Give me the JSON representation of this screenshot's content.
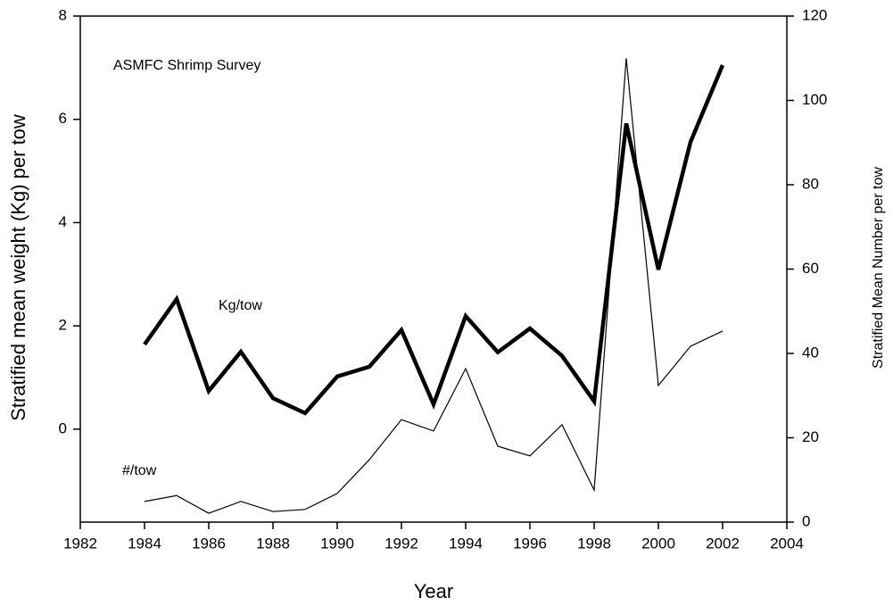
{
  "chart_data": {
    "type": "line",
    "annotations": [
      "ASMFC Shrimp Survey"
    ],
    "xlabel": "Year",
    "ylabel": "Stratified mean weight (Kg) per tow",
    "y2label": "Stratified Mean Number per tow",
    "x": [
      1984,
      1985,
      1986,
      1987,
      1988,
      1989,
      1990,
      1991,
      1992,
      1993,
      1994,
      1995,
      1996,
      1997,
      1998,
      1999,
      2000,
      2001,
      2002
    ],
    "series": [
      {
        "name": "Kg/tow",
        "color": "#000000",
        "values": [
          1.64,
          2.52,
          0.74,
          1.5,
          0.6,
          0.31,
          1.02,
          1.21,
          1.92,
          0.48,
          2.19,
          1.49,
          1.95,
          1.42,
          0.54,
          5.92,
          3.09,
          5.56,
          7.05
        ]
      },
      {
        "name": "#/tow",
        "color": "#000000",
        "axis": "y2",
        "values": [
          4.9,
          6.3,
          2.1,
          4.9,
          2.5,
          3.0,
          6.8,
          14.8,
          24.3,
          21.6,
          36.4,
          18.0,
          15.7,
          23.1,
          7.6,
          110.0,
          32.4,
          41.7,
          45.3
        ]
      }
    ],
    "xlim": [
      1982,
      2004
    ],
    "xticks": [
      1982,
      1984,
      1986,
      1988,
      1990,
      1992,
      1994,
      1996,
      1998,
      2000,
      2002,
      2004
    ],
    "ylim": [
      -1.8,
      8
    ],
    "yticks": [
      0,
      2,
      4,
      6,
      8
    ],
    "y2lim": [
      0,
      120
    ],
    "y2ticks": [
      0,
      20,
      40,
      60,
      80,
      100,
      120
    ],
    "grid": false
  }
}
